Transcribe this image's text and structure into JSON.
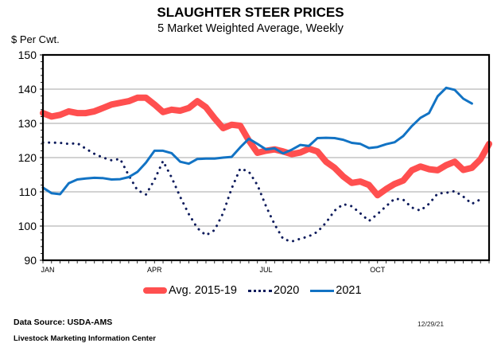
{
  "chart_data": {
    "type": "line",
    "title": "SLAUGHTER STEER PRICES",
    "subtitle": "5 Market Weighted Average, Weekly",
    "ylabel": "$ Per Cwt.",
    "xlabel": "",
    "ylim": [
      90,
      150
    ],
    "yticks": [
      90,
      100,
      110,
      120,
      130,
      140,
      150
    ],
    "x_weeks": 52,
    "xtick_labels": [
      {
        "label": "JAN",
        "week": 0
      },
      {
        "label": "APR",
        "week": 13
      },
      {
        "label": "JUL",
        "week": 26
      },
      {
        "label": "OCT",
        "week": 39
      }
    ],
    "grid": true,
    "legend_position": "bottom",
    "series": [
      {
        "name": "Avg. 2015-19",
        "color": "#ff4f4f",
        "style": "thick",
        "values": [
          133,
          132,
          132.5,
          133.5,
          133,
          133,
          133.5,
          134.5,
          135.5,
          136,
          136.5,
          137.5,
          137.5,
          135.5,
          133.3,
          134,
          133.7,
          134.5,
          136.5,
          134.7,
          131.5,
          128.6,
          129.6,
          129.3,
          125,
          121.4,
          122,
          122.4,
          121.8,
          121,
          121.5,
          122.6,
          121.8,
          118.8,
          117,
          114.5,
          112.6,
          113,
          112,
          109,
          110.8,
          112.3,
          113.3,
          116.3,
          117.4,
          116.6,
          116.3,
          117.8,
          118.8,
          116.4,
          117,
          119.5,
          124
        ]
      },
      {
        "name": "2020",
        "color": "#0d1b5c",
        "style": "dotted",
        "values": [
          124.4,
          124.4,
          124.3,
          124,
          124.2,
          122.6,
          121.1,
          120,
          119.2,
          119.6,
          114.8,
          110.5,
          109.2,
          113.5,
          119,
          114.2,
          108.5,
          103.5,
          99.4,
          97.3,
          98.8,
          103.8,
          111,
          116.8,
          115.9,
          112,
          105.8,
          100.5,
          96.2,
          95.5,
          96.3,
          97,
          98.3,
          101,
          104.5,
          106.4,
          105.8,
          103.7,
          101.5,
          103.5,
          105.8,
          108,
          107.7,
          105.4,
          104.5,
          106.5,
          109.5,
          109.7,
          110.2,
          108.6,
          106.5,
          107.8
        ]
      },
      {
        "name": "2021",
        "color": "#1273c4",
        "style": "solid",
        "values": [
          111.2,
          109.6,
          109.3,
          112.5,
          113.6,
          113.9,
          114.1,
          114,
          113.6,
          113.7,
          114.3,
          115.8,
          118.5,
          122,
          122,
          121.3,
          118.8,
          118.2,
          119.6,
          119.7,
          119.7,
          120,
          120.2,
          123,
          125.5,
          124,
          122.4,
          122.7,
          121.2,
          122.3,
          123.7,
          123.4,
          125.7,
          125.8,
          125.7,
          125.2,
          124.3,
          124,
          122.8,
          123.1,
          123.9,
          124.5,
          126.3,
          129.2,
          131.6,
          133,
          137.9,
          140.4,
          139.8,
          137.2,
          135.8
        ]
      }
    ]
  },
  "footer": {
    "source": "Data Source:  USDA-AMS",
    "organization": "Livestock Marketing Information Center",
    "date": "12/29/21"
  }
}
